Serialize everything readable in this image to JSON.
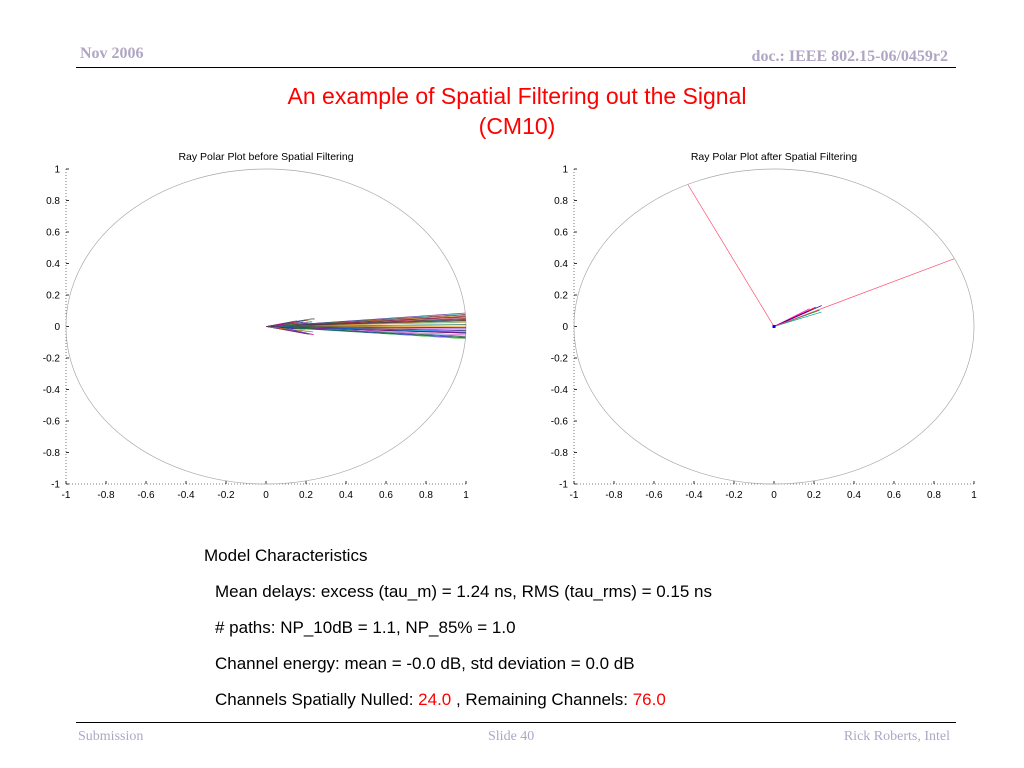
{
  "header": {
    "date": "Nov 2006",
    "doc_id": "doc.: IEEE 802.15-06/0459r2"
  },
  "slide_title": {
    "line1": "An example of Spatial Filtering out the Signal",
    "line2": "(CM10)"
  },
  "colors": {
    "title": "#ff0000",
    "header_footer": "#b0a6c4",
    "highlight": "#ff0000",
    "unit_circle": "#a8a8a8"
  },
  "chart_data": [
    {
      "type": "polar-ray",
      "title": "Ray Polar Plot before Spatial Filtering",
      "xlim": [
        -1,
        1
      ],
      "ylim": [
        -1,
        1
      ],
      "x_ticks": [
        "-1",
        "-0.8",
        "-0.6",
        "-0.4",
        "-0.2",
        "0",
        "0.2",
        "0.4",
        "0.6",
        "0.8",
        "1"
      ],
      "y_ticks": [
        "1",
        "0.8",
        "0.6",
        "0.4",
        "0.2",
        "0",
        "-0.2",
        "-0.4",
        "-0.6",
        "-0.8",
        "-1"
      ],
      "grid": false,
      "unit_circle": true,
      "rays": {
        "count": 150,
        "angle_spread_deg": [
          -10,
          10
        ],
        "long_ray_magnitude": 1.0,
        "cluster_magnitude_range": [
          0.0,
          0.25
        ],
        "multicolor": true
      }
    },
    {
      "type": "polar-ray",
      "title": "Ray Polar Plot after Spatial Filtering",
      "xlim": [
        -1,
        1
      ],
      "ylim": [
        -1,
        1
      ],
      "x_ticks": [
        "-1",
        "-0.8",
        "-0.6",
        "-0.4",
        "-0.2",
        "0",
        "0.2",
        "0.4",
        "0.6",
        "0.8",
        "1"
      ],
      "y_ticks": [
        "1",
        "0.8",
        "0.6",
        "0.4",
        "0.2",
        "0",
        "-0.2",
        "-0.4",
        "-0.6",
        "-0.8",
        "-1"
      ],
      "grid": false,
      "unit_circle": true,
      "highlight_rays": [
        {
          "x": -0.43,
          "y": 0.9,
          "color": "#ff4d6d"
        },
        {
          "x": 0.9,
          "y": 0.43,
          "color": "#ff4d6d"
        }
      ],
      "short_rays": {
        "count": 6,
        "x_range": [
          0.17,
          0.24
        ],
        "y_range": [
          0.08,
          0.17
        ]
      }
    }
  ],
  "model": {
    "heading": "Model Characteristics",
    "mean_delays": "Mean delays: excess (tau_m) = 1.24 ns, RMS (tau_rms) = 0.15 ns",
    "paths": "# paths: NP_10dB =  1.1, NP_85% = 1.0",
    "energy": "Channel energy: mean = -0.0 dB, std deviation = 0.0 dB",
    "nulled_label": "Channels Spatially Nulled: ",
    "nulled_value": "24.0",
    "remaining_label": " , Remaining Channels: ",
    "remaining_value": "76.0"
  },
  "footer": {
    "left": "Submission",
    "center": "Slide 40",
    "right": "Rick Roberts, Intel"
  }
}
